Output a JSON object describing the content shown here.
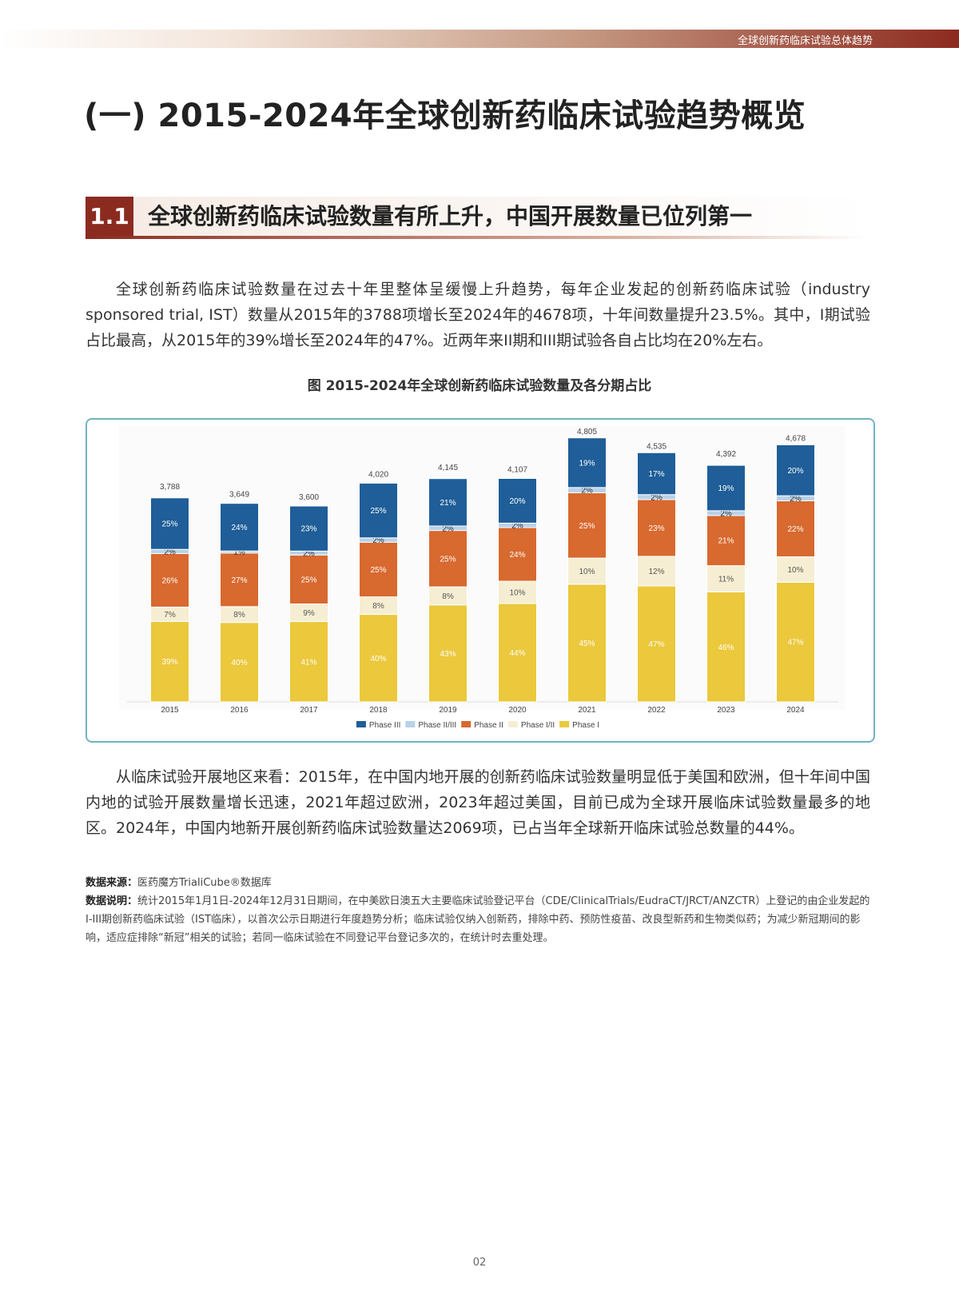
{
  "header": {
    "tag": "全球创新药临床试验总体趋势"
  },
  "heading": "(一) 2015-2024年全球创新药临床试验趋势概览",
  "section": {
    "number": "1.1",
    "title": "全球创新药临床试验数量有所上升，中国开展数量已位列第一"
  },
  "paragraphs": [
    "全球创新药临床试验数量在过去十年里整体呈缓慢上升趋势，每年企业发起的创新药临床试验（industry sponsored trial, IST）数量从2015年的3788项增长至2024年的4678项，十年间数量提升23.5%。其中，I期试验占比最高，从2015年的39%增长至2024年的47%。近两年来II期和III期试验各自占比均在20%左右。",
    "从临床试验开展地区来看：2015年，在中国内地开展的创新药临床试验数量明显低于美国和欧洲，但十年间中国内地的试验开展数量增长迅速，2021年超过欧洲，2023年超过美国，目前已成为全球开展临床试验数量最多的地区。2024年，中国内地新开展创新药临床试验数量达2069项，已占当年全球新开临床试验总数量的44%。"
  ],
  "chart_data": {
    "type": "bar",
    "stacked": true,
    "title": "图 2015-2024年全球创新药临床试验数量及各分期占比",
    "categories": [
      "2015",
      "2016",
      "2017",
      "2018",
      "2019",
      "2020",
      "2021",
      "2022",
      "2023",
      "2024"
    ],
    "totals": {
      "values": [
        3788,
        3649,
        3600,
        4020,
        4145,
        4107,
        4805,
        4535,
        4392,
        4678
      ],
      "value_labels": [
        "3,788",
        "3,649",
        "3,600",
        "4,020",
        "4,145",
        "4,107",
        "4,805",
        "4,535",
        "4,392",
        "4,678"
      ]
    },
    "series": [
      {
        "name": "Phase III",
        "color": "#1f5e98",
        "values": [
          25,
          24,
          23,
          25,
          21,
          20,
          19,
          17,
          19,
          20
        ],
        "value_labels": [
          "25%",
          "24%",
          "23%",
          "25%",
          "21%",
          "20%",
          "19%",
          "17%",
          "19%",
          "20%"
        ]
      },
      {
        "name": "Phase II/III",
        "color": "#b7d2ea",
        "values": [
          2,
          1,
          2,
          2,
          2,
          2,
          2,
          2,
          2,
          2
        ],
        "value_labels": [
          "2%",
          "1%",
          "2%",
          "2%",
          "2%",
          "2%",
          "2%",
          "2%",
          "2%",
          "2%"
        ]
      },
      {
        "name": "Phase II",
        "color": "#d8692f",
        "values": [
          26,
          27,
          25,
          25,
          25,
          24,
          25,
          23,
          21,
          22
        ],
        "value_labels": [
          "26%",
          "27%",
          "25%",
          "25%",
          "25%",
          "24%",
          "25%",
          "23%",
          "21%",
          "22%"
        ]
      },
      {
        "name": "Phase I/II",
        "color": "#f6eed3",
        "values": [
          7,
          8,
          9,
          8,
          8,
          10,
          10,
          12,
          11,
          10
        ],
        "value_labels": [
          "7%",
          "8%",
          "9%",
          "8%",
          "8%",
          "10%",
          "10%",
          "12%",
          "11%",
          "10%"
        ]
      },
      {
        "name": "Phase I",
        "color": "#ebc83c",
        "values": [
          39,
          40,
          41,
          40,
          43,
          44,
          45,
          47,
          46,
          47
        ],
        "value_labels": [
          "39%",
          "40%",
          "41%",
          "40%",
          "43%",
          "44%",
          "45%",
          "47%",
          "46%",
          "47%"
        ]
      }
    ],
    "legend": "bottom"
  },
  "notes": {
    "source_label": "数据来源：",
    "source": "医药魔方TrialiCube®数据库",
    "explain_label": "数据说明：",
    "explain": "统计2015年1月1日-2024年12月31日期间，在中美欧日澳五大主要临床试验登记平台（CDE/ClinicalTrials/EudraCT/JRCT/ANZCTR）上登记的由企业发起的I-III期创新药临床试验（IST临床），以首次公示日期进行年度趋势分析；临床试验仅纳入创新药，排除中药、预防性疫苗、改良型新药和生物类似药；为减少新冠期间的影响，适应症排除“新冠”相关的试验；若同一临床试验在不同登记平台登记多次的，在统计时去重处理。"
  },
  "page_number": "02"
}
